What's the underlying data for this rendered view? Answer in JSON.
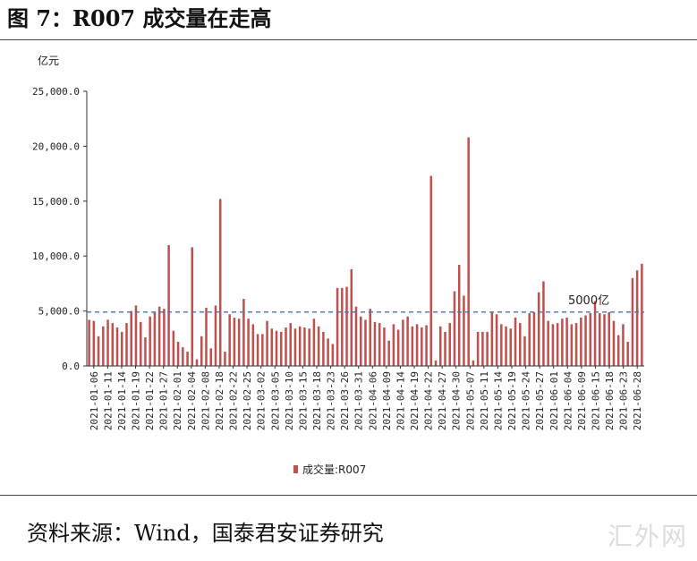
{
  "figure": {
    "title": "图 7：R007 成交量在走高",
    "source": "资料来源：Wind，国泰君安证券研究",
    "watermark": "汇外网"
  },
  "colors": {
    "bar": "#c0504d",
    "reference_line": "#4a6fa5",
    "axis": "#333333"
  },
  "chart_data": {
    "type": "bar",
    "ylabel": "亿元",
    "ylim": [
      0,
      25000
    ],
    "yticks": [
      "0.0",
      "5,000.0",
      "10,000.0",
      "15,000.0",
      "20,000.0",
      "25,000.0"
    ],
    "grid": false,
    "legend_position": "bottom",
    "series": [
      {
        "name": "成交量:R007"
      }
    ],
    "reference_line": {
      "value": 4900,
      "label": "5000亿",
      "style": "dashed"
    },
    "x_tick_labels": [
      "2021-01-06",
      "2021-01-11",
      "2021-01-14",
      "2021-01-19",
      "2021-01-22",
      "2021-01-27",
      "2021-02-01",
      "2021-02-04",
      "2021-02-08",
      "2021-02-18",
      "2021-02-22",
      "2021-02-25",
      "2021-03-02",
      "2021-03-05",
      "2021-03-10",
      "2021-03-15",
      "2021-03-18",
      "2021-03-23",
      "2021-03-26",
      "2021-03-31",
      "2021-04-06",
      "2021-04-09",
      "2021-04-14",
      "2021-04-19",
      "2021-04-22",
      "2021-04-27",
      "2021-04-30",
      "2021-05-07",
      "2021-05-11",
      "2021-05-14",
      "2021-05-19",
      "2021-05-24",
      "2021-05-27",
      "2021-06-01",
      "2021-06-04",
      "2021-06-09",
      "2021-06-15",
      "2021-06-18",
      "2021-06-23",
      "2021-06-28"
    ],
    "values": [
      4200,
      4100,
      2700,
      3600,
      4200,
      3900,
      3500,
      3100,
      3900,
      5000,
      5500,
      4000,
      2600,
      4500,
      4900,
      5400,
      5200,
      11000,
      3200,
      2200,
      1700,
      1300,
      10800,
      600,
      2700,
      5300,
      1600,
      5500,
      15200,
      1300,
      4700,
      4400,
      4300,
      6100,
      4300,
      3800,
      2900,
      2900,
      4100,
      3400,
      3200,
      3100,
      3500,
      3900,
      3400,
      3600,
      3500,
      3400,
      4300,
      3600,
      3100,
      2500,
      2000,
      7100,
      7100,
      7200,
      8800,
      5400,
      4500,
      4200,
      5200,
      4000,
      3900,
      3500,
      2300,
      3800,
      3300,
      4200,
      4500,
      3600,
      3800,
      3500,
      3700,
      17300,
      500,
      3600,
      3100,
      3900,
      6800,
      9200,
      6400,
      20800,
      500,
      3100,
      3100,
      3100,
      4900,
      4700,
      3800,
      3600,
      3400,
      4400,
      3900,
      2700,
      4800,
      4900,
      6700,
      7700,
      4100,
      3800,
      3900,
      4300,
      4400,
      3800,
      3900,
      4400,
      4600,
      4800,
      5900,
      4800,
      4700,
      4900,
      4100,
      2800,
      3800,
      2200,
      8000,
      8700,
      9300
    ]
  }
}
